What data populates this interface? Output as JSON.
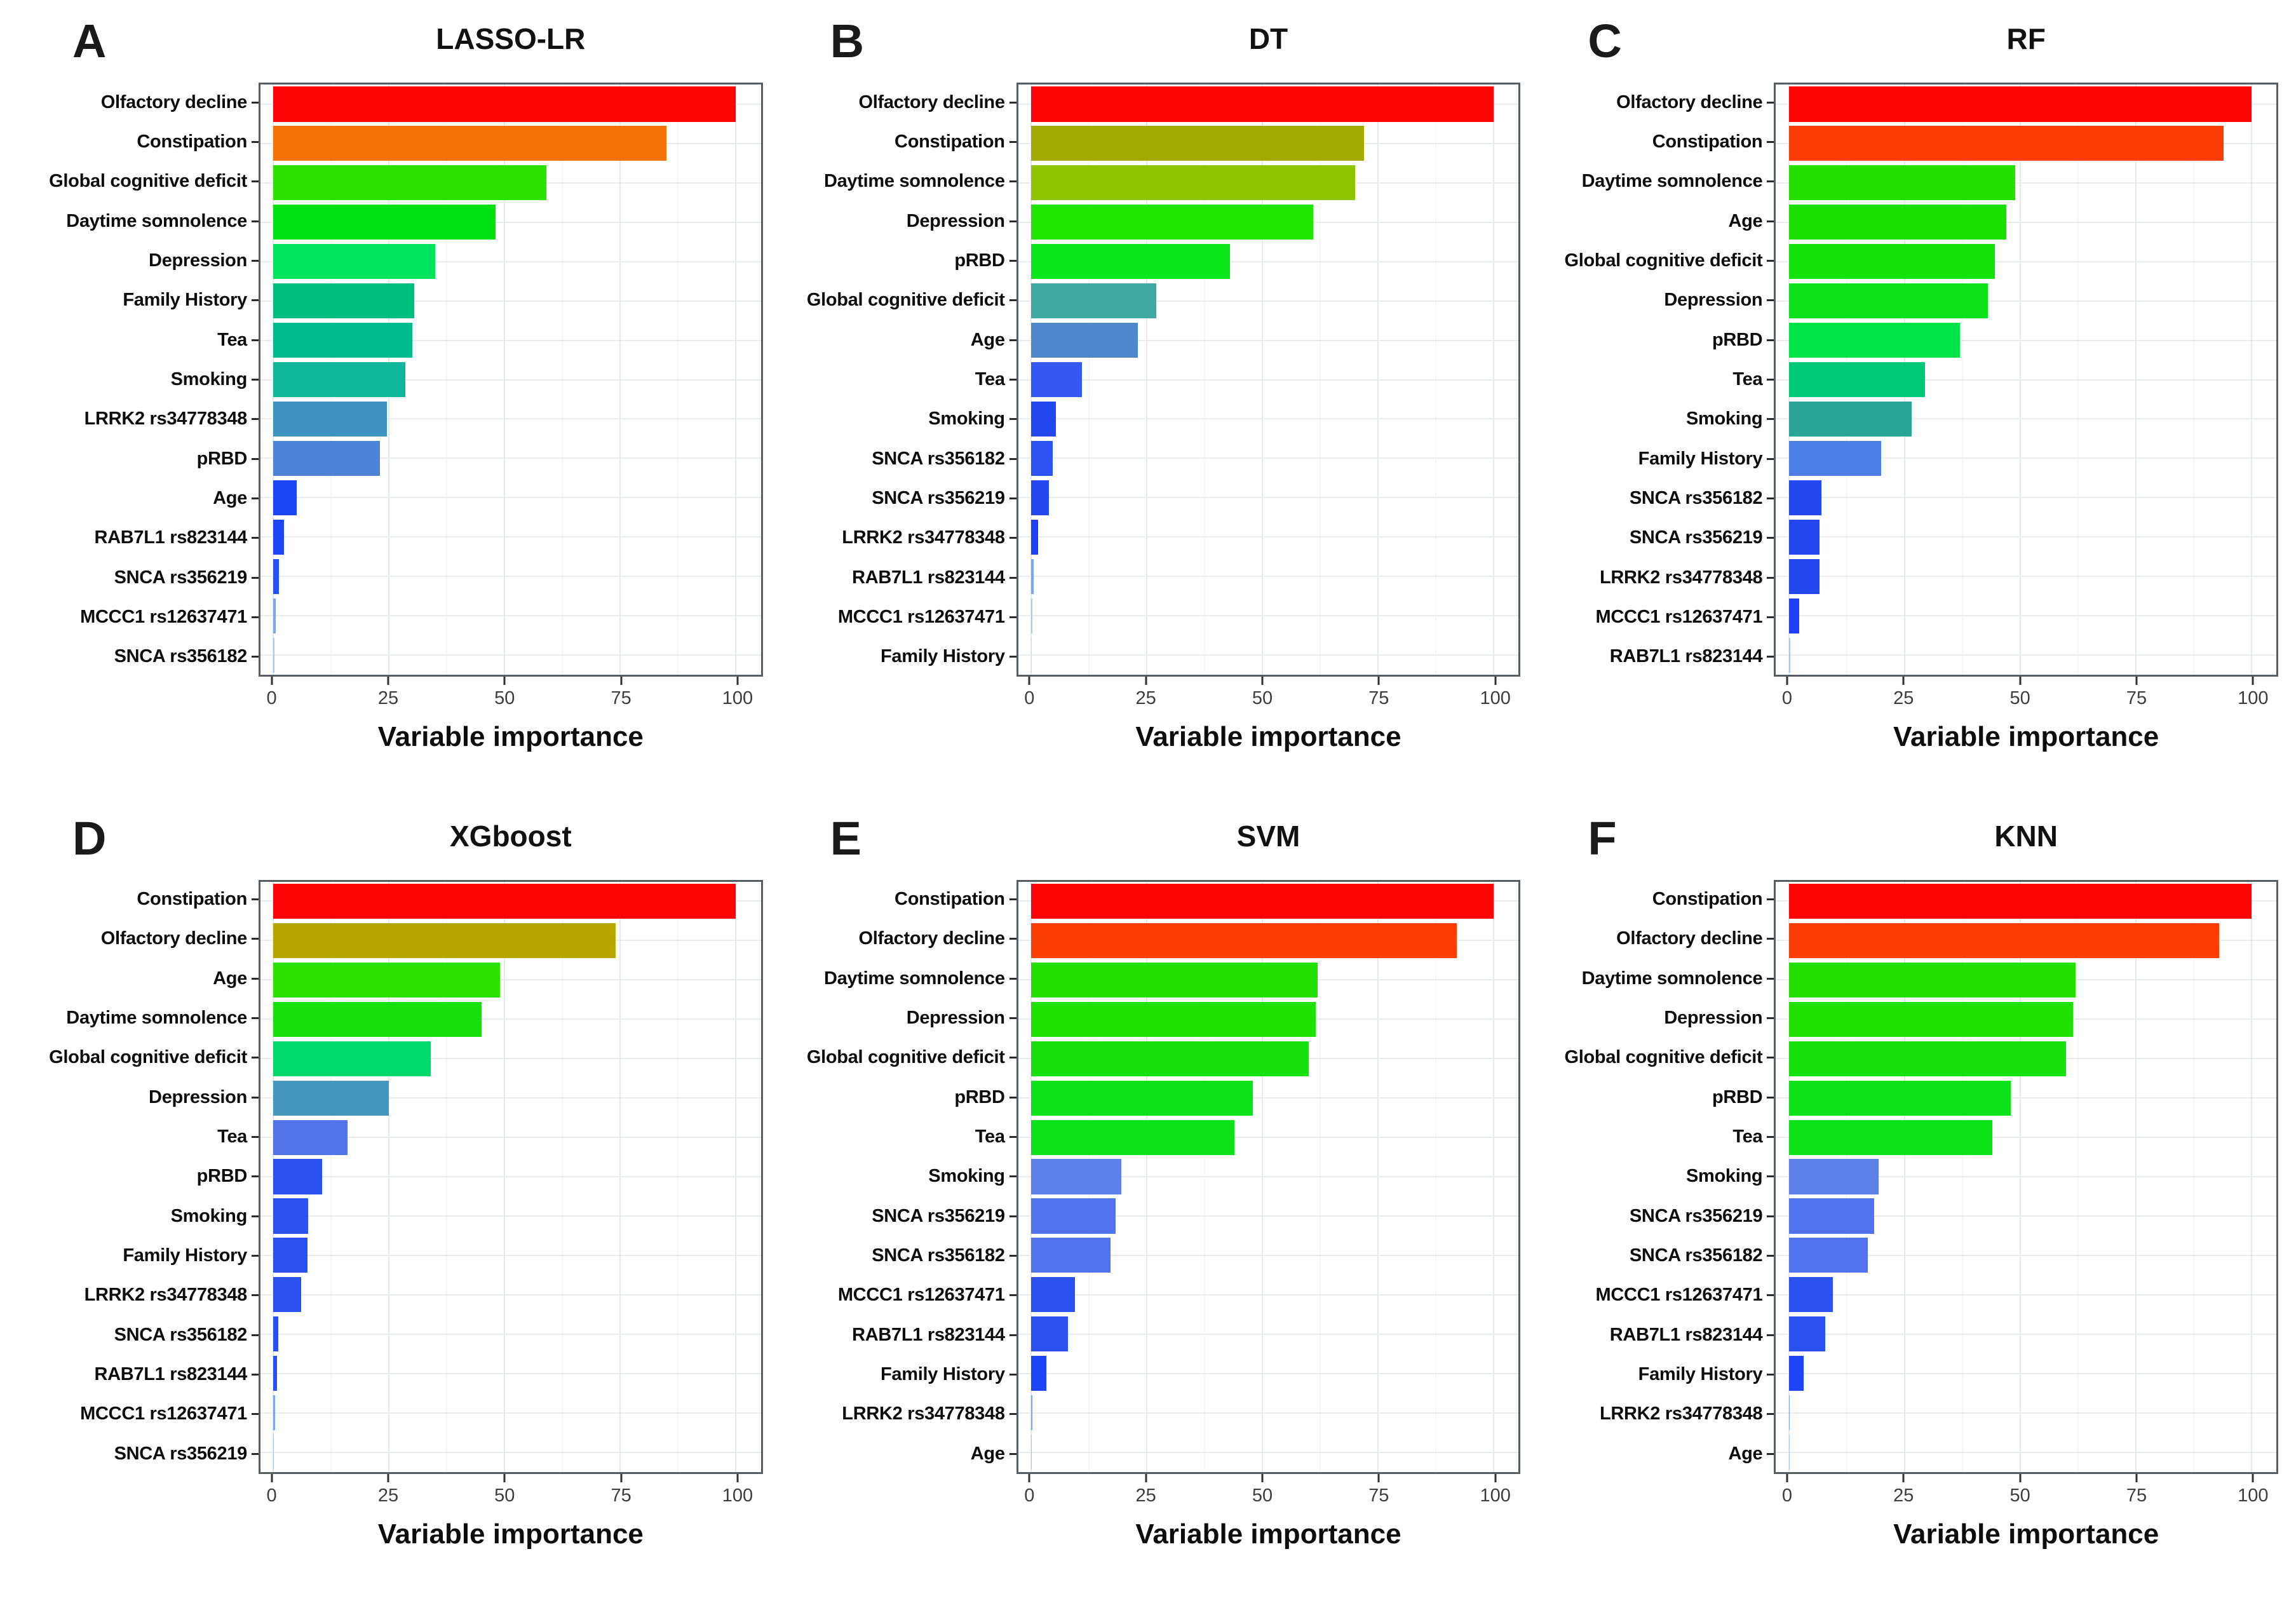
{
  "figure": {
    "xlabel": "Variable importance",
    "x_ticks": [
      0,
      25,
      50,
      75,
      100
    ],
    "x_minor_ticks": [
      12.5,
      37.5,
      62.5,
      87.5
    ],
    "panel_background": "#ffffff",
    "gridline_color": "#e2eaea",
    "border_color": "#565d63"
  },
  "chart_data": [
    {
      "type": "bar",
      "orientation": "horizontal",
      "panel": "A",
      "title": "LASSO-LR",
      "xlabel": "Variable importance",
      "xlim": [
        0,
        100
      ],
      "x_ticks": [
        0,
        25,
        50,
        75,
        100
      ],
      "categories": [
        "Olfactory decline",
        "Constipation",
        "Global cognitive deficit",
        "Daytime somnolence",
        "Depression",
        "Family History",
        "Tea",
        "Smoking",
        "LRRK2 rs34778348",
        "pRBD",
        "Age",
        "RAB7L1 rs823144",
        "SNCA rs356219",
        "MCCC1 rs12637471",
        "SNCA rs356182"
      ],
      "values": [
        100,
        85,
        59,
        48,
        35,
        30.5,
        30,
        28.5,
        24.5,
        23,
        5,
        2.3,
        1.2,
        0.5,
        0.2
      ],
      "colors": [
        "#fb0507",
        "#f57207",
        "#2ce000",
        "#00e112",
        "#00e35d",
        "#00be7d",
        "#00bc8c",
        "#0fb69a",
        "#3e92c0",
        "#4e83d8",
        "#1c46f2",
        "#1c46f2",
        "#2450f5",
        "#7aa5ff",
        "#a9c6ff"
      ]
    },
    {
      "type": "bar",
      "orientation": "horizontal",
      "panel": "B",
      "title": "DT",
      "xlabel": "Variable importance",
      "xlim": [
        0,
        100
      ],
      "x_ticks": [
        0,
        25,
        50,
        75,
        100
      ],
      "categories": [
        "Olfactory decline",
        "Constipation",
        "Daytime somnolence",
        "Depression",
        "pRBD",
        "Global cognitive deficit",
        "Age",
        "Tea",
        "Smoking",
        "SNCA rs356182",
        "SNCA rs356219",
        "LRRK2 rs34778348",
        "RAB7L1 rs823144",
        "MCCC1 rs12637471",
        "Family History"
      ],
      "values": [
        100,
        72,
        70,
        61,
        43,
        27,
        23,
        11,
        5.4,
        4.7,
        3.8,
        1.5,
        0.5,
        0.3,
        0.1
      ],
      "colors": [
        "#fb0507",
        "#a3ab00",
        "#8ec400",
        "#21e400",
        "#0ae81c",
        "#3fa8a0",
        "#5088cc",
        "#3558f2",
        "#2447f0",
        "#2e52f2",
        "#2447f0",
        "#1d3ff0",
        "#7aa5ff",
        "#a9c6ff",
        "#c9dbff"
      ]
    },
    {
      "type": "bar",
      "orientation": "horizontal",
      "panel": "C",
      "title": "RF",
      "xlabel": "Variable importance",
      "xlim": [
        0,
        100
      ],
      "x_ticks": [
        0,
        25,
        50,
        75,
        100
      ],
      "categories": [
        "Olfactory decline",
        "Constipation",
        "Daytime somnolence",
        "Age",
        "Global cognitive deficit",
        "Depression",
        "pRBD",
        "Tea",
        "Smoking",
        "Family History",
        "SNCA rs356182",
        "SNCA rs356219",
        "LRRK2 rs34778348",
        "MCCC1 rs12637471",
        "RAB7L1 rs823144"
      ],
      "values": [
        100,
        94,
        49,
        47,
        44.5,
        43,
        37,
        29.5,
        26.5,
        20,
        7,
        6.6,
        6.6,
        2.2,
        0.3
      ],
      "colors": [
        "#fb0507",
        "#fb3d06",
        "#23e000",
        "#1adf00",
        "#12e10a",
        "#0de11c",
        "#00e347",
        "#00c878",
        "#2aa496",
        "#4e7fe5",
        "#2447f0",
        "#2447f0",
        "#2447f0",
        "#1d3ff5",
        "#a9c6ff"
      ]
    },
    {
      "type": "bar",
      "orientation": "horizontal",
      "panel": "D",
      "title": "XGboost",
      "xlabel": "Variable importance",
      "xlim": [
        0,
        100
      ],
      "x_ticks": [
        0,
        25,
        50,
        75,
        100
      ],
      "categories": [
        "Constipation",
        "Olfactory decline",
        "Age",
        "Daytime somnolence",
        "Global cognitive deficit",
        "Depression",
        "Tea",
        "pRBD",
        "Smoking",
        "Family History",
        "LRRK2 rs34778348",
        "SNCA rs356182",
        "RAB7L1 rs823144",
        "MCCC1 rs12637471",
        "SNCA rs356219"
      ],
      "values": [
        100,
        74,
        49,
        45,
        34,
        25,
        16,
        10.5,
        7.5,
        7.3,
        6,
        1.1,
        0.8,
        0.3,
        0.1
      ],
      "colors": [
        "#fb0507",
        "#b5a700",
        "#2ce000",
        "#17e10c",
        "#00d86b",
        "#4596bc",
        "#5273e8",
        "#2b50f0",
        "#2b50f0",
        "#2b50f0",
        "#2b50f0",
        "#2450f5",
        "#2450f5",
        "#7aa5ff",
        "#a9c6ff"
      ]
    },
    {
      "type": "bar",
      "orientation": "horizontal",
      "panel": "E",
      "title": "SVM",
      "xlabel": "Variable importance",
      "xlim": [
        0,
        100
      ],
      "x_ticks": [
        0,
        25,
        50,
        75,
        100
      ],
      "categories": [
        "Constipation",
        "Olfactory decline",
        "Daytime somnolence",
        "Depression",
        "Global cognitive deficit",
        "pRBD",
        "Tea",
        "Smoking",
        "SNCA rs356219",
        "SNCA rs356182",
        "MCCC1 rs12637471",
        "RAB7L1 rs823144",
        "Family History",
        "LRRK2 rs34778348",
        "Age"
      ],
      "values": [
        100,
        92,
        62,
        61.5,
        60,
        48,
        44,
        19.5,
        18.3,
        17.2,
        9.5,
        7.9,
        3.3,
        0.3,
        0.1
      ],
      "colors": [
        "#fb0507",
        "#fb3d06",
        "#23e000",
        "#1fe000",
        "#17e10c",
        "#0de218",
        "#0de218",
        "#5c7fe8",
        "#5273f0",
        "#5273f0",
        "#2b50f0",
        "#2b50f0",
        "#1d44f5",
        "#7aa5ff",
        "#a9c6ff"
      ]
    },
    {
      "type": "bar",
      "orientation": "horizontal",
      "panel": "F",
      "title": "KNN",
      "xlabel": "Variable importance",
      "xlim": [
        0,
        100
      ],
      "x_ticks": [
        0,
        25,
        50,
        75,
        100
      ],
      "categories": [
        "Constipation",
        "Olfactory decline",
        "Daytime somnolence",
        "Depression",
        "Global cognitive deficit",
        "pRBD",
        "Tea",
        "Smoking",
        "SNCA rs356219",
        "SNCA rs356182",
        "MCCC1 rs12637471",
        "RAB7L1 rs823144",
        "Family History",
        "LRRK2 rs34778348",
        "Age"
      ],
      "values": [
        100,
        93,
        62,
        61.5,
        60,
        48,
        44,
        19.4,
        18.5,
        17.1,
        9.5,
        7.9,
        3.2,
        0.2,
        0.1
      ],
      "colors": [
        "#fb0507",
        "#fb3d06",
        "#23e000",
        "#1fe000",
        "#17e10c",
        "#0de218",
        "#0de218",
        "#5c7fe8",
        "#5273f0",
        "#5273f0",
        "#2b50f0",
        "#2b50f0",
        "#1d44f5",
        "#7aa5ff",
        "#a9c6ff"
      ]
    }
  ]
}
